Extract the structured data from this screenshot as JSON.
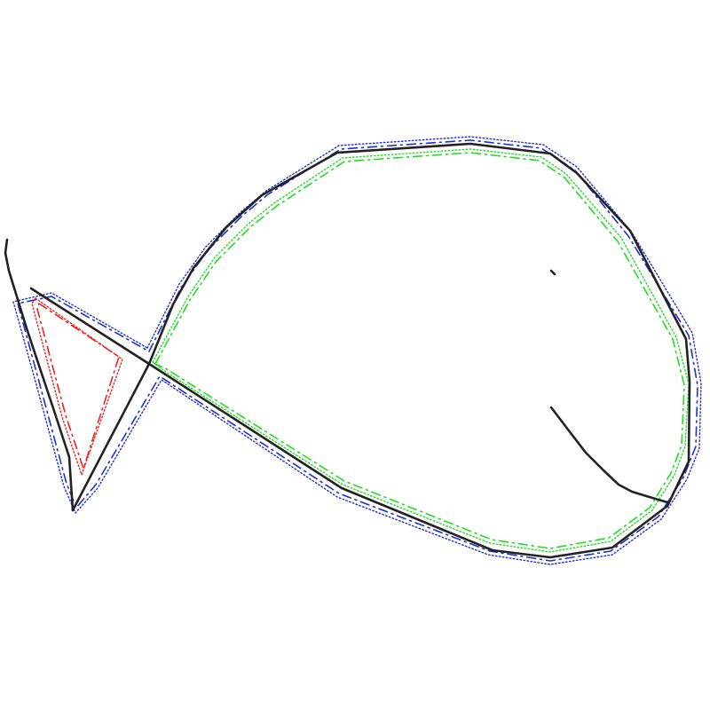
{
  "figure": {
    "description_text": "",
    "colors": {
      "ink": "#222222",
      "outer_outline": "#1f2fd6",
      "body_outline": "#22dd22",
      "tail_outline": "#ee2222",
      "background": "#ffffff"
    },
    "elements": [
      "fish-body-stroke",
      "fish-tail-stroke",
      "fish-eye-stroke",
      "fish-mouth-stroke",
      "outer-outline",
      "body-outline",
      "tail-outline"
    ]
  }
}
